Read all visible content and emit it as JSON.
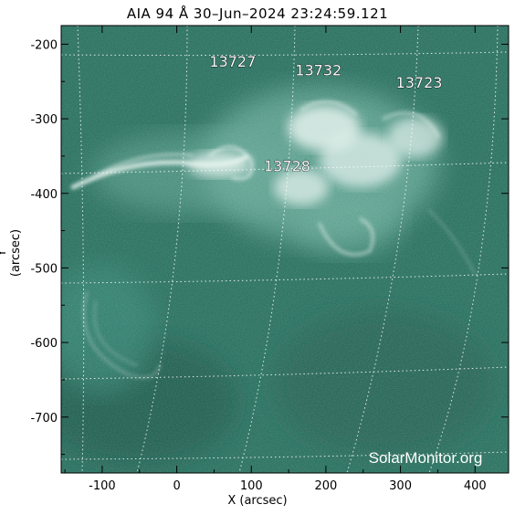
{
  "title": "AIA 94 Å 30–Jun–2024 23:24:59.121",
  "xlabel": "X (arcsec)",
  "ylabel": "Y (arcsec)",
  "watermark": "SolarMonitor.org",
  "x_ticks": [
    "-100",
    "0",
    "100",
    "200",
    "300",
    "400"
  ],
  "y_ticks": [
    "-200",
    "-300",
    "-400",
    "-500",
    "-600",
    "-700"
  ],
  "regions": [
    {
      "label": "13727",
      "x": 75,
      "y": -230
    },
    {
      "label": "13732",
      "x": 190,
      "y": -242
    },
    {
      "label": "13723",
      "x": 325,
      "y": -258
    },
    {
      "label": "13728",
      "x": 148,
      "y": -370
    }
  ],
  "colors": {
    "background": "#1f6a58",
    "accent": "#ffffff"
  }
}
